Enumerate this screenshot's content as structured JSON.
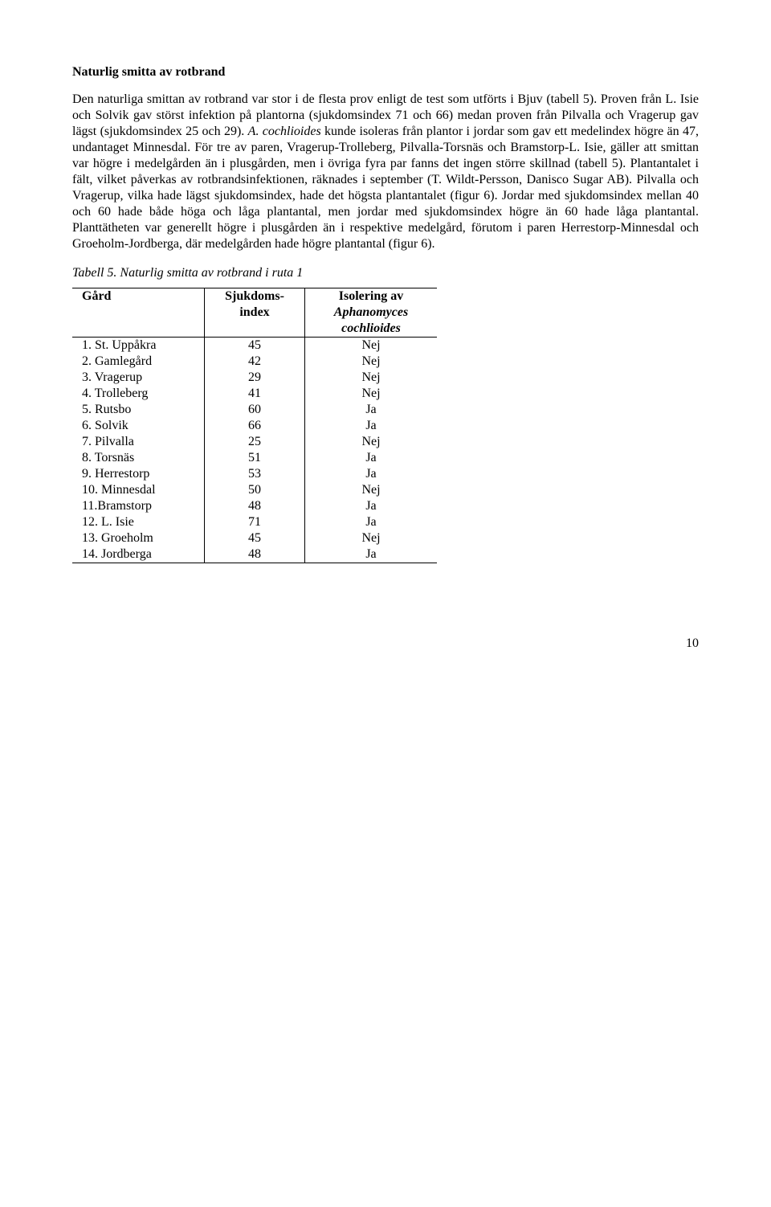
{
  "title": "Naturlig smitta av rotbrand",
  "paragraph": "Den naturliga smittan av rotbrand var stor i de flesta prov enligt de test som utförts i Bjuv (tabell 5). Proven från L. Isie och Solvik gav störst infektion på plantorna (sjukdomsindex 71 och 66) medan proven från Pilvalla och Vragerup gav lägst (sjukdomsindex 25 och 29). A. cochlioides kunde isoleras från plantor i jordar som gav ett medelindex högre än 47, undantaget Minnesdal. För tre av paren, Vragerup-Trolleberg, Pilvalla-Torsnäs och Bramstorp-L. Isie, gäller att smittan var högre i medelgården än i plusgården, men i övriga fyra par fanns det ingen större skillnad (tabell 5). Plantantalet i fält, vilket påverkas av rotbrandsinfektionen, räknades i september (T. Wildt-Persson, Danisco Sugar AB). Pilvalla och Vragerup, vilka hade lägst sjukdomsindex, hade det högsta plantantalet (figur 6). Jordar med sjukdomsindex mellan 40 och 60 hade både höga och låga plantantal, men jordar med sjukdomsindex högre än 60 hade låga plantantal. Planttätheten var generellt högre i plusgården än i respektive medelgård, förutom i paren Herrestorp-Minnesdal och Groeholm-Jordberga, där medelgården hade högre plantantal (figur 6).",
  "caption": "Tabell 5. Naturlig smitta av rotbrand i ruta 1",
  "table": {
    "headers": {
      "gard": "Gård",
      "index_line1": "Sjukdoms-",
      "index_line2": "index",
      "iso_line1": "Isolering av",
      "iso_line2": "Aphanomyces",
      "iso_line3": "cochlioides"
    },
    "rows": [
      {
        "gard": "1. St. Uppåkra",
        "index": "45",
        "iso": "Nej"
      },
      {
        "gard": "2. Gamlegård",
        "index": "42",
        "iso": "Nej"
      },
      {
        "gard": "3. Vragerup",
        "index": "29",
        "iso": "Nej"
      },
      {
        "gard": "4. Trolleberg",
        "index": "41",
        "iso": "Nej"
      },
      {
        "gard": "5. Rutsbo",
        "index": "60",
        "iso": "Ja"
      },
      {
        "gard": "6. Solvik",
        "index": "66",
        "iso": "Ja"
      },
      {
        "gard": "7. Pilvalla",
        "index": "25",
        "iso": "Nej"
      },
      {
        "gard": "8. Torsnäs",
        "index": "51",
        "iso": "Ja"
      },
      {
        "gard": "9. Herrestorp",
        "index": "53",
        "iso": "Ja"
      },
      {
        "gard": "10. Minnesdal",
        "index": "50",
        "iso": "Nej"
      },
      {
        "gard": "11.Bramstorp",
        "index": "48",
        "iso": "Ja"
      },
      {
        "gard": "12. L. Isie",
        "index": "71",
        "iso": "Ja"
      },
      {
        "gard": "13. Groeholm",
        "index": "45",
        "iso": "Nej"
      },
      {
        "gard": "14. Jordberga",
        "index": "48",
        "iso": "Ja"
      }
    ]
  },
  "page_number": "10",
  "styles": {
    "font_family": "Times New Roman",
    "body_fontsize": 16,
    "title_weight": "bold",
    "caption_style": "italic",
    "text_color": "#000000",
    "background_color": "#ffffff",
    "table_border_color": "#000000"
  }
}
